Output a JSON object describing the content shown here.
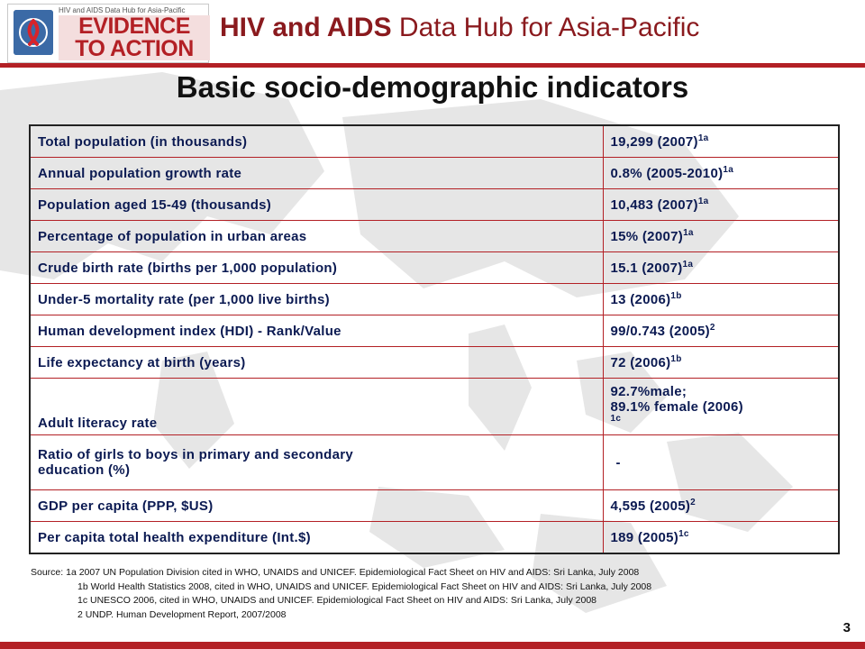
{
  "header": {
    "logo_small": "HIV and AIDS Data Hub for Asia-Pacific",
    "logo_line1": "EVIDENCE",
    "logo_line2": "TO ACTION",
    "title_bold": "HIV and AIDS",
    "title_rest": " Data Hub for Asia-Pacific"
  },
  "page_title": "Basic socio-demographic indicators",
  "rows": [
    {
      "label": "Total population (in thousands)",
      "value": "19,299 (2007)",
      "ref": "1a"
    },
    {
      "label": "Annual population growth rate",
      "value": "0.8% (2005-2010)",
      "ref": "1a"
    },
    {
      "label": "Population aged 15-49 (thousands)",
      "value": "10,483 (2007)",
      "ref": "1a"
    },
    {
      "label": "Percentage of population in urban areas",
      "value": "15% (2007)",
      "ref": "1a"
    },
    {
      "label": "Crude birth rate (births per 1,000 population)",
      "value": "15.1 (2007)",
      "ref": "1a"
    },
    {
      "label": "Under-5 mortality rate (per 1,000 live births)",
      "value": "13 (2006)",
      "ref": "1b"
    },
    {
      "label": "Human development index (HDI) - Rank/Value",
      "value": "99/0.743 (2005)",
      "ref": "2"
    },
    {
      "label": "Life expectancy at birth (years)",
      "value": "72 (2006)",
      "ref": "1b"
    },
    {
      "label": "Adult literacy rate",
      "value_line1": "92.7%male;",
      "value_line2": "89.1% female (2006)",
      "ref": "1c"
    },
    {
      "label_line1": "Ratio of girls to boys in primary and secondary",
      "label_line2": "education (%)",
      "value": "-"
    },
    {
      "label": "GDP per capita (PPP, $US)",
      "value": "4,595 (2005)",
      "ref": "2"
    },
    {
      "label": "Per capita total health expenditure (Int.$)",
      "value": "189 (2005)",
      "ref": "1c"
    }
  ],
  "sources": {
    "line1": "Source:  1a 2007 UN Population Division cited in WHO, UNAIDS and UNICEF.  Epidemiological Fact Sheet on HIV and AIDS: Sri Lanka, July 2008",
    "line2": "1b World Health Statistics 2008, cited in  WHO,  UNAIDS and UNICEF.  Epidemiological Fact Sheet on HIV and AIDS: Sri Lanka, July 2008",
    "line3": "1c UNESCO 2006, cited in WHO,  UNAIDS and UNICEF.  Epidemiological Fact Sheet on HIV and AIDS: Sri Lanka, July 2008",
    "line4": "2 UNDP. Human Development Report, 2007/2008"
  },
  "page_number": "3",
  "colors": {
    "brand_red": "#b32025",
    "text_navy": "#0b1a52",
    "emblem_blue": "#3b6aa6"
  }
}
